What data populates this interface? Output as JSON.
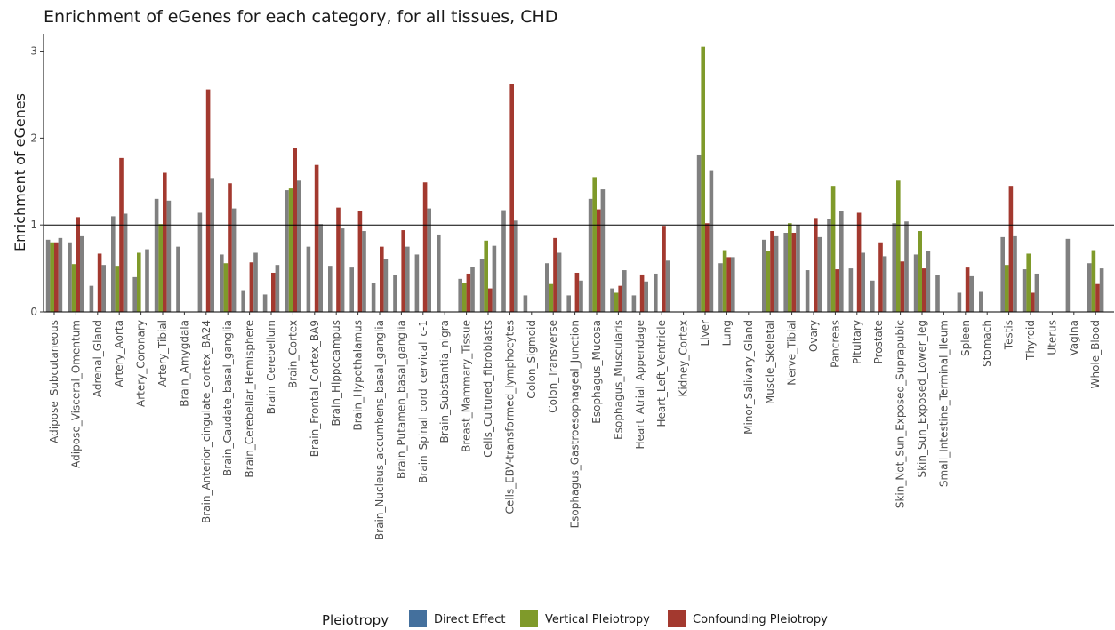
{
  "chart_data": {
    "type": "bar",
    "title": "Enrichment of eGenes for each category, for all tissues, CHD",
    "xlabel": "",
    "ylabel": "Enrichment of eGenes",
    "ylim": [
      0,
      3.2
    ],
    "yticks": [
      0,
      1,
      2,
      3
    ],
    "reference_line": 1,
    "grid": false,
    "legend": {
      "title": "Pleiotropy",
      "position": "bottom",
      "entries": [
        "Direct Effect",
        "Vertical Pleiotropy",
        "Confounding Pleiotropy"
      ]
    },
    "categories": [
      "Adipose_Subcutaneous",
      "Adipose_Visceral_Omentum",
      "Adrenal_Gland",
      "Artery_Aorta",
      "Artery_Coronary",
      "Artery_Tibial",
      "Brain_Amygdala",
      "Brain_Anterior_cingulate_cortex_BA24",
      "Brain_Caudate_basal_ganglia",
      "Brain_Cerebellar_Hemisphere",
      "Brain_Cerebellum",
      "Brain_Cortex",
      "Brain_Frontal_Cortex_BA9",
      "Brain_Hippocampus",
      "Brain_Hypothalamus",
      "Brain_Nucleus_accumbens_basal_ganglia",
      "Brain_Putamen_basal_ganglia",
      "Brain_Spinal_cord_cervical_c-1",
      "Brain_Substantia_nigra",
      "Breast_Mammary_Tissue",
      "Cells_Cultured_fibroblasts",
      "Cells_EBV-transformed_lymphocytes",
      "Colon_Sigmoid",
      "Colon_Transverse",
      "Esophagus_Gastroesophageal_Junction",
      "Esophagus_Mucosa",
      "Esophagus_Muscularis",
      "Heart_Atrial_Appendage",
      "Heart_Left_Ventricle",
      "Kidney_Cortex",
      "Liver",
      "Lung",
      "Minor_Salivary_Gland",
      "Muscle_Skeletal",
      "Nerve_Tibial",
      "Ovary",
      "Pancreas",
      "Pituitary",
      "Prostate",
      "Skin_Not_Sun_Exposed_Suprapubic",
      "Skin_Sun_Exposed_Lower_leg",
      "Small_Intestine_Terminal_Ileum",
      "Spleen",
      "Stomach",
      "Testis",
      "Thyroid",
      "Uterus",
      "Vagina",
      "Whole_Blood"
    ],
    "series": [
      {
        "name": "Direct Effect",
        "values": [
          0.83,
          0.8,
          0.3,
          1.1,
          0.4,
          1.3,
          0.75,
          1.14,
          0.66,
          0.25,
          0.2,
          1.4,
          0.75,
          0.53,
          0.51,
          0.33,
          0.42,
          0.66,
          0.89,
          0.38,
          0.61,
          1.17,
          0.19,
          0.56,
          0.19,
          1.3,
          0.27,
          0.19,
          0.44,
          0.0,
          1.81,
          0.56,
          0.0,
          0.83,
          0.91,
          0.48,
          1.07,
          0.5,
          0.36,
          1.02,
          0.66,
          0.42,
          0.22,
          0.23,
          0.86,
          0.49,
          0.0,
          0.84,
          0.56
        ]
      },
      {
        "name": "Vertical Pleiotropy",
        "values": [
          0.8,
          0.55,
          0.0,
          0.53,
          0.68,
          1.01,
          0.0,
          0.0,
          0.56,
          0.0,
          0.0,
          1.42,
          0.0,
          0.0,
          0.0,
          0.0,
          0.0,
          0.0,
          0.0,
          0.33,
          0.82,
          0.0,
          0.0,
          0.32,
          0.0,
          1.55,
          0.22,
          0.0,
          0.0,
          0.0,
          3.05,
          0.71,
          0.0,
          0.7,
          1.02,
          0.0,
          1.45,
          0.0,
          0.0,
          1.51,
          0.93,
          0.0,
          0.0,
          0.0,
          0.54,
          0.67,
          0.0,
          0.0,
          0.71
        ]
      },
      {
        "name": "Confounding Pleiotropy",
        "values": [
          0.8,
          1.09,
          0.67,
          1.77,
          0.0,
          1.6,
          0.0,
          2.56,
          1.48,
          0.57,
          0.45,
          1.89,
          1.69,
          1.2,
          1.16,
          0.75,
          0.94,
          1.49,
          0.0,
          0.44,
          0.27,
          2.62,
          0.0,
          0.85,
          0.45,
          1.18,
          0.3,
          0.43,
          0.99,
          0.0,
          1.02,
          0.63,
          0.0,
          0.93,
          0.91,
          1.08,
          0.49,
          1.14,
          0.8,
          0.58,
          0.5,
          0.0,
          0.51,
          0.0,
          1.45,
          0.22,
          0.0,
          0.0,
          0.32
        ]
      },
      {
        "name": "",
        "values": [
          0.85,
          0.87,
          0.54,
          1.13,
          0.72,
          1.28,
          0.0,
          1.54,
          1.19,
          0.68,
          0.54,
          1.51,
          1.01,
          0.96,
          0.93,
          0.61,
          0.75,
          1.19,
          0.0,
          0.52,
          0.76,
          1.05,
          0.0,
          0.68,
          0.36,
          1.41,
          0.48,
          0.35,
          0.59,
          0.0,
          1.63,
          0.63,
          0.0,
          0.87,
          1.0,
          0.86,
          1.16,
          0.68,
          0.64,
          1.04,
          0.7,
          0.0,
          0.41,
          0.0,
          0.87,
          0.44,
          0.0,
          0.0,
          0.5
        ]
      }
    ],
    "colors": [
      "#808080",
      "#7f9a2a",
      "#a3392f",
      "#808080"
    ],
    "legend_colors": [
      "#44709d",
      "#7f9a2a",
      "#a3392f"
    ]
  }
}
